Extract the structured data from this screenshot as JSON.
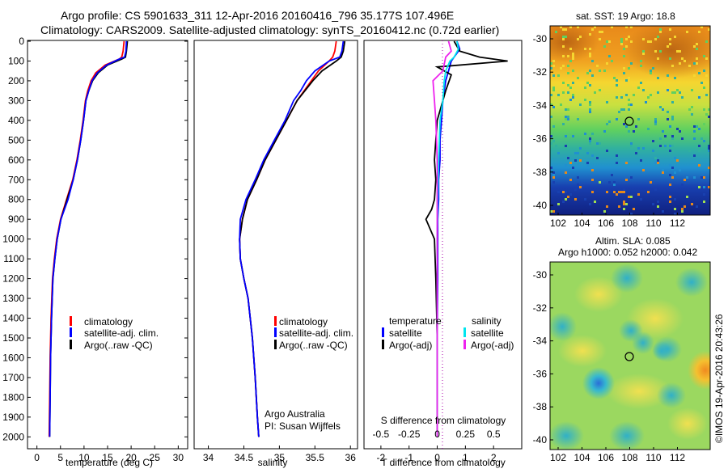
{
  "header": {
    "title_line1": "Argo profile: CS 5901633_311 12-Apr-2016 20160416_796 35.177S 107.496E",
    "title_line2": "Climatology: CARS2009. Satellite-adjusted climatology: synTS_20160412.nc (0.72d earlier)"
  },
  "colors": {
    "climatology": "#ff0000",
    "satellite": "#0000ff",
    "argo": "#000000",
    "salinity_satellite": "#00e5ee",
    "salinity_argo": "#ee22ee"
  },
  "depth_axis": {
    "ticks": [
      "0",
      "100",
      "200",
      "300",
      "400",
      "500",
      "600",
      "700",
      "800",
      "900",
      "1000",
      "1100",
      "1200",
      "1300",
      "1400",
      "1500",
      "1600",
      "1700",
      "1800",
      "1900",
      "2000"
    ]
  },
  "chart_data": [
    {
      "type": "line",
      "xlabel": "temperature (deg C)",
      "xlim": [
        -2,
        32
      ],
      "ylim": [
        2060,
        0
      ],
      "xticks": [
        "0",
        "5",
        "10",
        "15",
        "20",
        "25",
        "30"
      ],
      "legend": [
        "climatology",
        "satellite-adj. clim.",
        "Argo(..raw -QC)"
      ],
      "series": [
        {
          "name": "climatology",
          "x": [
            18.5,
            18.3,
            18.0,
            17.5,
            14.5,
            12.5,
            11.5,
            10.8,
            10.3,
            9.8,
            9.2,
            8.5,
            7.6,
            6.3,
            5.0,
            4.2,
            3.7,
            3.3,
            3.0,
            2.8,
            2.7,
            2.6
          ],
          "y": [
            0,
            50,
            80,
            90,
            120,
            160,
            200,
            250,
            300,
            400,
            500,
            600,
            700,
            800,
            900,
            1000,
            1100,
            1200,
            1400,
            1600,
            1800,
            2000
          ]
        },
        {
          "name": "satellite-adj. clim.",
          "x": [
            19.2,
            19.0,
            18.8,
            18.0,
            15.0,
            13.0,
            11.8,
            11.0,
            10.4,
            9.9,
            9.3,
            8.6,
            7.7,
            6.4,
            5.1,
            4.3,
            3.8,
            3.4,
            3.1,
            2.9,
            2.8,
            2.7
          ],
          "y": [
            0,
            50,
            80,
            90,
            120,
            160,
            200,
            250,
            300,
            400,
            500,
            600,
            700,
            800,
            900,
            1000,
            1100,
            1200,
            1400,
            1600,
            1800,
            2000
          ]
        },
        {
          "name": "Argo(..raw -QC)",
          "x": [
            19.0,
            18.9,
            18.6,
            17.5,
            14.8,
            12.8,
            11.7,
            11.0,
            10.4,
            9.9,
            9.3,
            8.6,
            7.7,
            6.6,
            5.1,
            4.3,
            3.8,
            3.4,
            3.1,
            2.9,
            2.8,
            2.7
          ],
          "y": [
            0,
            50,
            80,
            90,
            120,
            160,
            200,
            250,
            300,
            400,
            500,
            600,
            700,
            800,
            900,
            1000,
            1100,
            1200,
            1400,
            1600,
            1800,
            2000
          ]
        }
      ]
    },
    {
      "type": "line",
      "xlabel": "salinity",
      "xlim": [
        33.8,
        36.1
      ],
      "ylim": [
        2060,
        0
      ],
      "xticks": [
        "34",
        "34.5",
        "35",
        "35.5",
        "36"
      ],
      "legend": [
        "climatology",
        "satellite-adj. clim.",
        "Argo(..raw -QC)"
      ],
      "annotation": [
        "Argo Australia",
        "PI: Susan Wijffels"
      ],
      "series": [
        {
          "name": "climatology",
          "x": [
            35.8,
            35.78,
            35.75,
            35.7,
            35.55,
            35.45,
            35.35,
            35.25,
            35.1,
            34.95,
            34.8,
            34.68,
            34.55,
            34.48,
            34.44,
            34.45,
            34.5,
            34.56,
            34.62,
            34.66,
            34.69,
            34.71
          ],
          "y": [
            0,
            50,
            80,
            100,
            150,
            200,
            250,
            300,
            400,
            500,
            600,
            700,
            800,
            900,
            1000,
            1100,
            1200,
            1300,
            1500,
            1700,
            1900,
            2000
          ]
        },
        {
          "name": "satellite-adj. clim.",
          "x": [
            35.92,
            35.9,
            35.87,
            35.8,
            35.6,
            35.47,
            35.36,
            35.25,
            35.1,
            34.95,
            34.8,
            34.68,
            34.55,
            34.48,
            34.44,
            34.45,
            34.5,
            34.56,
            34.62,
            34.66,
            34.69,
            34.71
          ],
          "y": [
            0,
            50,
            80,
            100,
            150,
            200,
            250,
            300,
            400,
            500,
            600,
            700,
            800,
            900,
            1000,
            1100,
            1200,
            1300,
            1500,
            1700,
            1900,
            2000
          ]
        },
        {
          "name": "Argo(..raw -QC)",
          "x": [
            35.9,
            35.88,
            35.85,
            35.7,
            35.5,
            35.38,
            35.3,
            35.2,
            35.08,
            34.93,
            34.78,
            34.66,
            34.53,
            34.45,
            34.44,
            34.45,
            34.5,
            34.56,
            34.62,
            34.66,
            34.69,
            34.71
          ],
          "y": [
            0,
            50,
            80,
            100,
            150,
            200,
            250,
            300,
            400,
            500,
            600,
            700,
            800,
            900,
            1000,
            1100,
            1200,
            1300,
            1500,
            1700,
            1900,
            2000
          ]
        }
      ]
    },
    {
      "type": "line",
      "xlabel": "T difference from climatology",
      "top_label": "S difference from climatology",
      "xlim": [
        -2.6,
        3.0
      ],
      "ylim": [
        2060,
        0
      ],
      "xticks": [
        "-2",
        "-1",
        "0",
        "1",
        "2"
      ],
      "top_ticks": [
        "-0.5",
        "-0.25",
        "0",
        "0.25",
        "0.5"
      ],
      "legend_titles": [
        "temperature",
        "salinity"
      ],
      "legend": [
        "satellite",
        "Argo(-adj)",
        "satellite",
        "Argo(-adj)"
      ],
      "series": [
        {
          "name": "satellite",
          "x": [
            0.7,
            0.8,
            0.6,
            0.5,
            0.4,
            0.3,
            0.2,
            0.15,
            0.1,
            0.1,
            0.05,
            0.05,
            0.02,
            0.02,
            0.02,
            0.0,
            0.0,
            0.0
          ],
          "y": [
            0,
            40,
            80,
            100,
            150,
            200,
            300,
            400,
            500,
            600,
            700,
            800,
            900,
            1000,
            1200,
            1500,
            1800,
            2000
          ]
        },
        {
          "name": "Argo(-adj)",
          "x": [
            0.6,
            0.8,
            1.5,
            2.5,
            0.0,
            0.5,
            0.3,
            0.0,
            -0.1,
            -0.05,
            -0.1,
            -0.2,
            -0.4,
            -0.1,
            -0.05,
            0.0,
            0.0,
            0.0
          ],
          "y": [
            0,
            50,
            80,
            100,
            130,
            170,
            250,
            400,
            600,
            700,
            800,
            850,
            900,
            1000,
            1200,
            1500,
            1800,
            2000
          ]
        },
        {
          "name": "salinity satellite",
          "x": [
            0.7,
            0.75,
            0.6,
            0.45,
            0.3,
            0.25,
            0.2,
            0.1,
            0.05,
            0.02,
            0.0,
            0.0,
            0.0
          ],
          "y": [
            0,
            40,
            80,
            100,
            150,
            200,
            300,
            400,
            600,
            800,
            1000,
            1500,
            2000
          ]
        },
        {
          "name": "salinity Argo(-adj)",
          "x": [
            0.4,
            0.5,
            0.3,
            0.2,
            -0.15,
            -0.1,
            -0.05,
            0.0,
            0.0,
            0.0
          ],
          "y": [
            0,
            50,
            80,
            150,
            200,
            300,
            400,
            600,
            1000,
            2000
          ]
        }
      ]
    }
  ],
  "maps": {
    "top": {
      "title": "sat. SST: 19 Argo: 18.8",
      "xticks": [
        "102",
        "104",
        "106",
        "108",
        "110",
        "112"
      ],
      "yticks": [
        "-30",
        "-32",
        "-34",
        "-36",
        "-38",
        "-40"
      ]
    },
    "bottom": {
      "title_line1": "Altim. SLA: 0.085",
      "title_line2": "Argo h1000: 0.052 h2000: 0.042",
      "xticks": [
        "102",
        "104",
        "106",
        "108",
        "110",
        "112"
      ],
      "yticks": [
        "-30",
        "-32",
        "-34",
        "-36",
        "-38",
        "-40"
      ]
    }
  },
  "watermark": "©IMOS 19-Apr-2016 20:43:26"
}
